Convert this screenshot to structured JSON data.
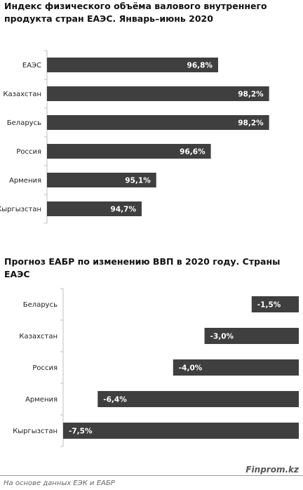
{
  "chart_data": [
    {
      "type": "bar",
      "orientation": "horizontal",
      "title": "Индекс физического объёма валового внутреннего продукта стран ЕАЭС. Январь–июнь 2020",
      "categories": [
        "ЕАЭС",
        "Казахстан",
        "Беларусь",
        "Россия",
        "Армения",
        "Кыргызстан"
      ],
      "values": [
        96.8,
        98.2,
        98.2,
        96.6,
        95.1,
        94.7
      ],
      "value_labels": [
        "96,8%",
        "98,2%",
        "98,2%",
        "96,6%",
        "95,1%",
        "94,7%"
      ],
      "xlim": [
        92.1,
        98.9
      ],
      "bar_color": "#3f3f3f",
      "grid": false,
      "legend": "none"
    },
    {
      "type": "bar",
      "orientation": "horizontal",
      "title": "Прогноз ЕАБР по изменению ВВП в 2020 году. Страны ЕАЭС",
      "categories": [
        "Беларусь",
        "Казахстан",
        "Россия",
        "Армения",
        "Кыргызстан"
      ],
      "values": [
        -1.5,
        -3.0,
        -4.0,
        -6.4,
        -7.5
      ],
      "value_labels": [
        "-1,5%",
        "-3,0%",
        "-4,0%",
        "-6,4%",
        "-7,5%"
      ],
      "xlim": [
        -7.5,
        0
      ],
      "bar_color": "#3f3f3f",
      "grid": false,
      "legend": "none"
    }
  ],
  "footer": {
    "brand": "Finprom.kz",
    "source": "На основе данных ЕЭК и ЕАБР"
  }
}
